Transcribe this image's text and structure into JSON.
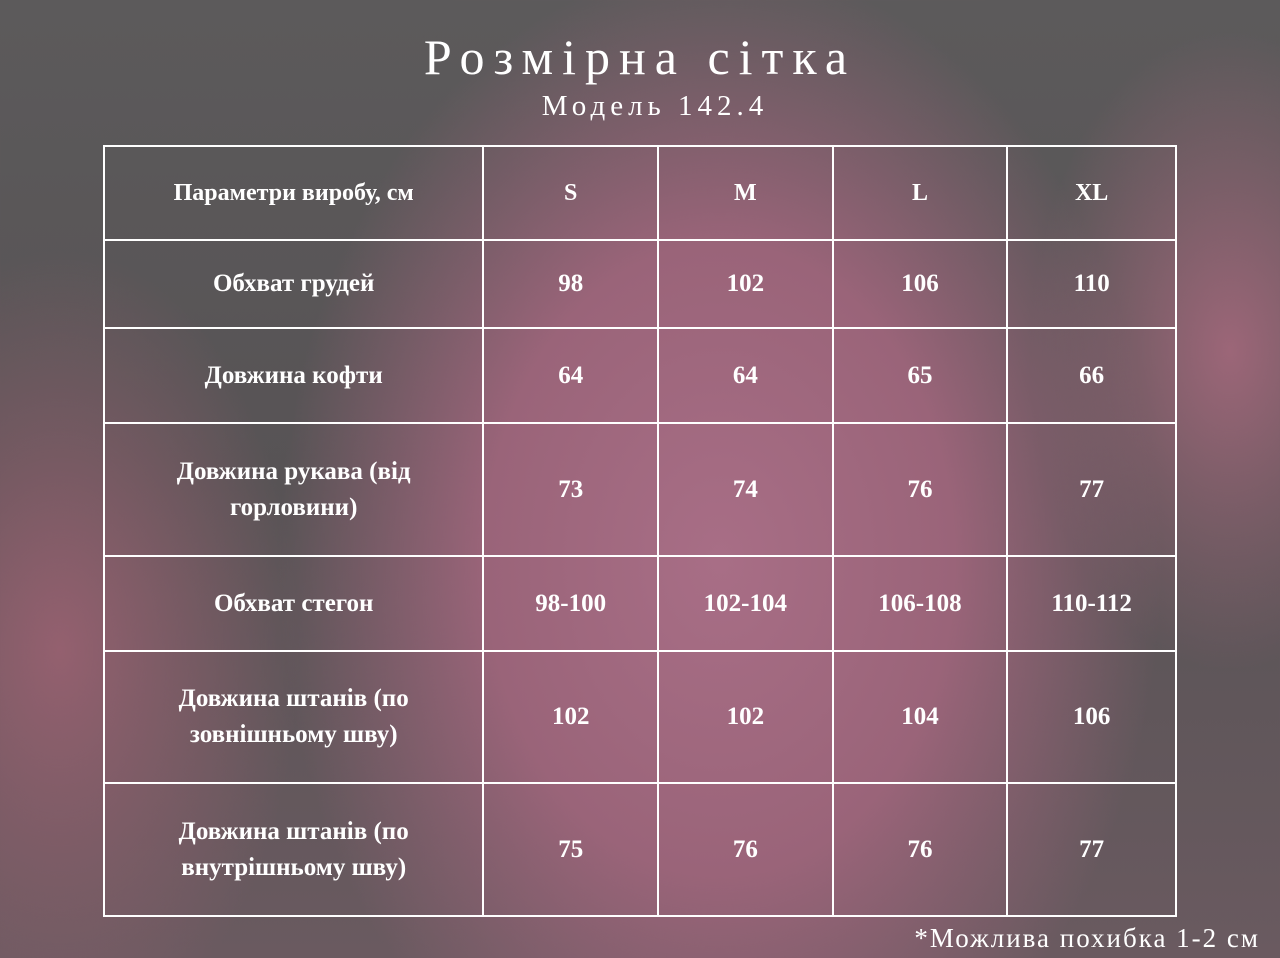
{
  "title": "Розмірна сітка",
  "subtitle": "Модель 142.4",
  "table": {
    "headers": [
      "Параметри виробу, см",
      "S",
      "M",
      "L",
      "XL"
    ],
    "rows": [
      [
        "Обхват грудей",
        "98",
        "102",
        "106",
        "110"
      ],
      [
        "Довжина кофти",
        "64",
        "64",
        "65",
        "66"
      ],
      [
        "Довжина рукава (від горловини)",
        "73",
        "74",
        "76",
        "77"
      ],
      [
        "Обхват стегон",
        "98-100",
        "102-104",
        "106-108",
        "110-112"
      ],
      [
        "Довжина штанів (по зовнішньому шву)",
        "102",
        "102",
        "104",
        "106"
      ],
      [
        "Довжина штанів (по внутрішньому шву)",
        "75",
        "76",
        "76",
        "77"
      ]
    ]
  },
  "footnote": "*Можлива похибка 1-2 см"
}
